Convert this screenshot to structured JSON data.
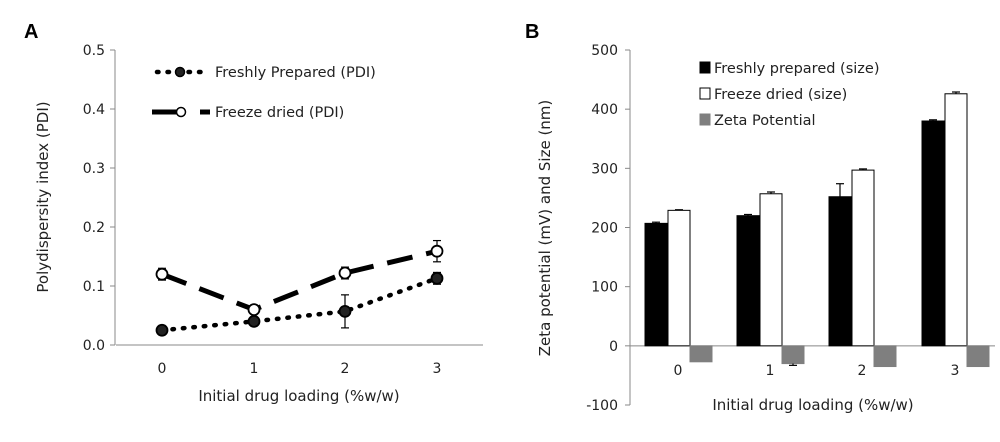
{
  "panels": {
    "a": {
      "letter": "A"
    },
    "b": {
      "letter": "B"
    }
  },
  "chart_data": [
    {
      "type": "line",
      "panel": "A",
      "xlabel": "Initial drug loading (%w/w)",
      "ylabel": "Polydispersity index (PDI)",
      "x": [
        0,
        1,
        2,
        3
      ],
      "xlim": [
        -0.5,
        3.5
      ],
      "ylim": [
        0,
        0.5
      ],
      "yticks": [
        "0.0",
        "0.1",
        "0.2",
        "0.3",
        "0.4",
        "0.5"
      ],
      "xticks": [
        "0",
        "1",
        "2",
        "3"
      ],
      "grid": false,
      "legend_position": "top-left",
      "series": [
        {
          "name": "Freshly Prepared (PDI)",
          "style": "dotted",
          "marker": "filled-circle",
          "values": [
            0.025,
            0.04,
            0.057,
            0.113
          ],
          "errors": [
            0.003,
            0.005,
            0.028,
            0.01
          ]
        },
        {
          "name": "Freeze dried (PDI)",
          "style": "dashed",
          "marker": "open-circle",
          "values": [
            0.12,
            0.06,
            0.122,
            0.159
          ],
          "errors": [
            0.01,
            0.005,
            0.01,
            0.018
          ]
        }
      ]
    },
    {
      "type": "bar",
      "panel": "B",
      "xlabel": "Initial drug loading (%w/w)",
      "ylabel": "Zeta potential (mV) and Size (nm)",
      "categories": [
        "0",
        "1",
        "2",
        "3"
      ],
      "ylim": [
        -100,
        500
      ],
      "yticks": [
        "-100",
        "0",
        "100",
        "200",
        "300",
        "400",
        "500"
      ],
      "grid": false,
      "legend_position": "top-left",
      "series": [
        {
          "name": "Freshly prepared (size)",
          "color": "#000000",
          "values": [
            207,
            220,
            252,
            380
          ],
          "errors": [
            2,
            2,
            22,
            2
          ]
        },
        {
          "name": "Freeze dried (size)",
          "color": "#ffffff",
          "values": [
            229,
            257,
            297,
            426
          ],
          "errors": [
            1,
            3,
            2,
            3
          ]
        },
        {
          "name": "Zeta Potential",
          "color": "#7f7f7f",
          "values": [
            -27,
            -30,
            -35,
            -35
          ],
          "errors": [
            0,
            3,
            0,
            0
          ]
        }
      ]
    }
  ]
}
